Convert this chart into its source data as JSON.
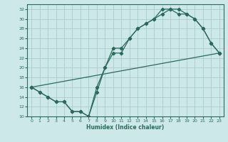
{
  "title": "",
  "xlabel": "Humidex (Indice chaleur)",
  "bg_color": "#cce8e8",
  "grid_color": "#aacccc",
  "line_color": "#2a6a5a",
  "marker_color": "#2a6a5a",
  "xlim": [
    -0.5,
    23.5
  ],
  "ylim": [
    10,
    33
  ],
  "xticks": [
    0,
    1,
    2,
    3,
    4,
    5,
    6,
    7,
    8,
    9,
    10,
    11,
    12,
    13,
    14,
    15,
    16,
    17,
    18,
    19,
    20,
    21,
    22,
    23
  ],
  "yticks": [
    10,
    12,
    14,
    16,
    18,
    20,
    22,
    24,
    26,
    28,
    30,
    32
  ],
  "line1_x": [
    0,
    1,
    2,
    3,
    4,
    5,
    6,
    7,
    8,
    9,
    10,
    11,
    12,
    13,
    14,
    15,
    16,
    17,
    18,
    19,
    20,
    21,
    22,
    23
  ],
  "line1_y": [
    16,
    15,
    14,
    13,
    13,
    11,
    11,
    10,
    16,
    20,
    24,
    24,
    26,
    28,
    29,
    30,
    32,
    32,
    31,
    31,
    30,
    28,
    25,
    23
  ],
  "line2_x": [
    0,
    1,
    2,
    3,
    4,
    5,
    6,
    7,
    8,
    9,
    10,
    11,
    12,
    13,
    14,
    15,
    16,
    17,
    18,
    19,
    20,
    21,
    22,
    23
  ],
  "line2_y": [
    16,
    15,
    14,
    13,
    13,
    11,
    11,
    10,
    15,
    20,
    23,
    23,
    26,
    28,
    29,
    30,
    31,
    32,
    32,
    31,
    30,
    28,
    25,
    23
  ],
  "line3_x": [
    0,
    23
  ],
  "line3_y": [
    16,
    23
  ]
}
